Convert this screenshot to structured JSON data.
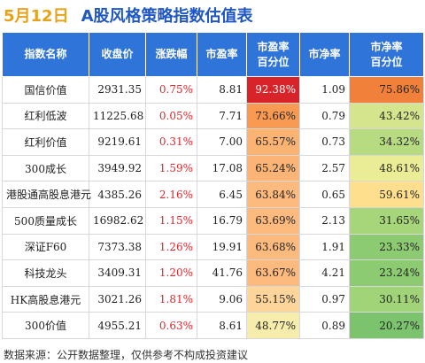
{
  "title": {
    "date": "5月12日",
    "main": "A股风格策略指数估值表"
  },
  "headers": [
    {
      "l1": "指数名称",
      "l2": ""
    },
    {
      "l1": "收盘价",
      "l2": ""
    },
    {
      "l1": "涨跌幅",
      "l2": ""
    },
    {
      "l1": "市盈率",
      "l2": ""
    },
    {
      "l1": "市盈率",
      "l2": "百分位"
    },
    {
      "l1": "市净率",
      "l2": ""
    },
    {
      "l1": "市净率",
      "l2": "百分位"
    }
  ],
  "rows": [
    {
      "name": "国信价值",
      "close": "2931.35",
      "change": "0.75%",
      "pe": "8.81",
      "pe_pct": "92.38%",
      "pe_color": "#d9232a",
      "pe_text_color": "#ffffff",
      "pb": "1.09",
      "pb_pct": "75.86%",
      "pb_color": "#f0803a"
    },
    {
      "name": "红利低波",
      "close": "11225.68",
      "change": "0.05%",
      "pe": "7.71",
      "pe_pct": "73.66%",
      "pe_color": "#f89a52",
      "pe_text_color": "#222222",
      "pb": "0.79",
      "pb_pct": "43.42%",
      "pb_color": "#d4e58e"
    },
    {
      "name": "红利价值",
      "close": "9219.61",
      "change": "0.31%",
      "pe": "7.00",
      "pe_pct": "65.57%",
      "pe_color": "#fbb374",
      "pe_text_color": "#222222",
      "pb": "0.73",
      "pb_pct": "34.32%",
      "pb_color": "#b6db80"
    },
    {
      "name": "300成长",
      "close": "3949.92",
      "change": "1.59%",
      "pe": "17.08",
      "pe_pct": "65.24%",
      "pe_color": "#fbb476",
      "pe_text_color": "#222222",
      "pb": "2.57",
      "pb_pct": "48.61%",
      "pb_color": "#eaed96"
    },
    {
      "name": "港股通高股息港元",
      "close": "4385.26",
      "change": "2.16%",
      "pe": "6.45",
      "pe_pct": "63.84%",
      "pe_color": "#fcba7e",
      "pe_text_color": "#222222",
      "pb": "0.65",
      "pb_pct": "59.61%",
      "pb_color": "#fddf8e"
    },
    {
      "name": "500质量成长",
      "close": "16982.62",
      "change": "1.15%",
      "pe": "16.79",
      "pe_pct": "63.69%",
      "pe_color": "#fcba7f",
      "pe_text_color": "#222222",
      "pb": "2.13",
      "pb_pct": "31.65%",
      "pb_color": "#a7d57a"
    },
    {
      "name": "深证F60",
      "close": "7373.38",
      "change": "1.26%",
      "pe": "19.91",
      "pe_pct": "63.68%",
      "pe_color": "#fcba7f",
      "pe_text_color": "#222222",
      "pb": "1.91",
      "pb_pct": "23.33%",
      "pb_color": "#8ccb72"
    },
    {
      "name": "科技龙头",
      "close": "3409.31",
      "change": "1.20%",
      "pe": "41.76",
      "pe_pct": "63.67%",
      "pe_color": "#fcba7f",
      "pe_text_color": "#222222",
      "pb": "4.21",
      "pb_pct": "23.24%",
      "pb_color": "#8ccb72"
    },
    {
      "name": "HK高股息港元",
      "close": "3021.26",
      "change": "1.81%",
      "pe": "9.06",
      "pe_pct": "55.15%",
      "pe_color": "#fdd59a",
      "pe_text_color": "#222222",
      "pb": "0.97",
      "pb_pct": "30.11%",
      "pb_color": "#a1d379"
    },
    {
      "name": "300价值",
      "close": "4955.21",
      "change": "0.63%",
      "pe": "8.61",
      "pe_pct": "48.77%",
      "pe_color": "#f6ecab",
      "pe_text_color": "#222222",
      "pb": "0.89",
      "pb_pct": "20.27%",
      "pb_color": "#7cc36e"
    }
  ],
  "footer": "数据来源：公开数据整理，仅供参考不构成投资建议"
}
